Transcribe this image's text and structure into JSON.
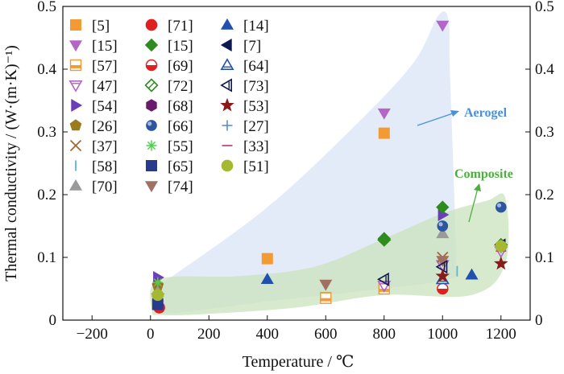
{
  "chart_data": {
    "type": "scatter",
    "xlabel": "Temperature / ℃",
    "ylabel": "Thermal conductivity / (W·(m·K)⁻¹)",
    "xlim": [
      -300,
      1300
    ],
    "ylim": [
      0,
      0.5
    ],
    "xticks": [
      "−200",
      "0",
      "200",
      "400",
      "600",
      "800",
      "1000",
      "1200"
    ],
    "xtick_values": [
      -200,
      0,
      200,
      400,
      600,
      800,
      1000,
      1200
    ],
    "yticks": [
      "0",
      "0.1",
      "0.2",
      "0.3",
      "0.4",
      "0.5"
    ],
    "ytick_values": [
      0,
      0.1,
      0.2,
      0.3,
      0.4,
      0.5
    ],
    "right_axis": true,
    "grid": false,
    "legend_placement": "top-left",
    "annotations": [
      {
        "text": "Aerogel",
        "color": "#4a90d9"
      },
      {
        "text": "Composite",
        "color": "#4caf3e"
      }
    ],
    "regions": [
      {
        "name": "Aerogel",
        "fill": "#dbe4f5",
        "outline": [
          [
            20,
            0.02
          ],
          [
            25,
            0.055
          ],
          [
            60,
            0.065
          ],
          [
            400,
            0.18
          ],
          [
            700,
            0.31
          ],
          [
            900,
            0.41
          ],
          [
            985,
            0.485
          ],
          [
            1020,
            0.48
          ],
          [
            1025,
            0.4
          ],
          [
            1040,
            0.2
          ],
          [
            1045,
            0.09
          ],
          [
            1020,
            0.065
          ],
          [
            700,
            0.045
          ],
          [
            400,
            0.03
          ],
          [
            100,
            0.012
          ],
          [
            25,
            0.012
          ]
        ]
      },
      {
        "name": "Composite",
        "fill": "#c9e3be",
        "outline": [
          [
            5,
            0.015
          ],
          [
            30,
            0.065
          ],
          [
            300,
            0.07
          ],
          [
            560,
            0.085
          ],
          [
            800,
            0.13
          ],
          [
            1000,
            0.17
          ],
          [
            1150,
            0.19
          ],
          [
            1215,
            0.195
          ],
          [
            1215,
            0.09
          ],
          [
            1100,
            0.04
          ],
          [
            800,
            0.04
          ],
          [
            500,
            0.02
          ],
          [
            200,
            0.01
          ],
          [
            40,
            0.008
          ]
        ]
      }
    ],
    "series": [
      {
        "name": "[5]",
        "marker": "square",
        "color": "#f39a33",
        "points": [
          [
            400,
            0.098
          ],
          [
            600,
            0.036
          ],
          [
            800,
            0.298
          ]
        ]
      },
      {
        "name": "[15]",
        "marker": "triangle-down",
        "color": "#b466c6",
        "points": [
          [
            800,
            0.33
          ],
          [
            1000,
            0.47
          ]
        ]
      },
      {
        "name": "[57]",
        "marker": "square-half",
        "color": "#f39a33",
        "points": [
          [
            600,
            0.035
          ],
          [
            800,
            0.05
          ]
        ]
      },
      {
        "name": "[47]",
        "marker": "triangle-down-open",
        "color": "#b466c6",
        "points": [
          [
            25,
            0.035
          ],
          [
            800,
            0.055
          ],
          [
            1000,
            0.088
          ],
          [
            1200,
            0.11
          ]
        ]
      },
      {
        "name": "[54]",
        "marker": "triangle-right",
        "color": "#6a3fb5",
        "points": [
          [
            25,
            0.068
          ],
          [
            1000,
            0.168
          ]
        ]
      },
      {
        "name": "[26]",
        "marker": "pentagon",
        "color": "#9a7b1e",
        "points": [
          [
            25,
            0.055
          ]
        ]
      },
      {
        "name": "[37]",
        "marker": "x",
        "color": "#a0632e",
        "points": [
          [
            25,
            0.05
          ],
          [
            1000,
            0.1
          ]
        ]
      },
      {
        "name": "[58]",
        "marker": "vline",
        "color": "#55b8d9",
        "points": [
          [
            1050,
            0.078
          ]
        ]
      },
      {
        "name": "[70]",
        "marker": "triangle-up",
        "color": "#9a9a9a",
        "points": [
          [
            25,
            0.045
          ],
          [
            1000,
            0.138
          ]
        ]
      },
      {
        "name": "[71]",
        "marker": "circle",
        "color": "#e02020",
        "points": [
          [
            30,
            0.02
          ]
        ]
      },
      {
        "name": "[15]",
        "marker": "diamond",
        "color": "#2e8b1e",
        "points": [
          [
            800,
            0.13
          ],
          [
            1000,
            0.18
          ]
        ]
      },
      {
        "name": "[69]",
        "marker": "circle-half",
        "color": "#e02020",
        "points": [
          [
            1000,
            0.05
          ]
        ]
      },
      {
        "name": "[72]",
        "marker": "diamond-open",
        "color": "#2e8b1e",
        "points": [
          [
            800,
            0.128
          ],
          [
            1200,
            0.12
          ]
        ]
      },
      {
        "name": "[68]",
        "marker": "hexagon",
        "color": "#6a1a6a",
        "points": [
          [
            25,
            0.03
          ]
        ]
      },
      {
        "name": "[66]",
        "marker": "sphere",
        "color": "#2d55a0",
        "points": [
          [
            1000,
            0.15
          ],
          [
            1200,
            0.18
          ]
        ]
      },
      {
        "name": "[55]",
        "marker": "asterisk",
        "color": "#4bd04b",
        "points": [
          [
            25,
            0.06
          ]
        ]
      },
      {
        "name": "[65]",
        "marker": "square",
        "color": "#283a8c",
        "points": [
          [
            25,
            0.025
          ]
        ]
      },
      {
        "name": "[74]",
        "marker": "triangle-down",
        "color": "#a07060",
        "points": [
          [
            600,
            0.057
          ],
          [
            1000,
            0.095
          ]
        ]
      },
      {
        "name": "[14]",
        "marker": "triangle-up",
        "color": "#2050b0",
        "points": [
          [
            400,
            0.065
          ],
          [
            1100,
            0.072
          ]
        ]
      },
      {
        "name": "[7]",
        "marker": "triangle-left",
        "color": "#101850",
        "points": [
          [
            1200,
            0.12
          ]
        ]
      },
      {
        "name": "[64]",
        "marker": "triangle-up-open",
        "color": "#2050b0",
        "points": [
          [
            1000,
            0.065
          ]
        ]
      },
      {
        "name": "[73]",
        "marker": "triangle-left-open",
        "color": "#101850",
        "points": [
          [
            800,
            0.065
          ],
          [
            1000,
            0.085
          ]
        ]
      },
      {
        "name": "[53]",
        "marker": "star",
        "color": "#8b1a1a",
        "points": [
          [
            1000,
            0.07
          ],
          [
            1200,
            0.09
          ]
        ]
      },
      {
        "name": "[27]",
        "marker": "plus",
        "color": "#5b8fd0",
        "points": [
          [
            1200,
            0.115
          ]
        ]
      },
      {
        "name": "[33]",
        "marker": "hline",
        "color": "#c04a8a",
        "points": [
          [
            1200,
            0.11
          ]
        ]
      },
      {
        "name": "[51]",
        "marker": "circle",
        "color": "#a4b830",
        "points": [
          [
            25,
            0.04
          ],
          [
            1200,
            0.118
          ]
        ]
      }
    ]
  }
}
